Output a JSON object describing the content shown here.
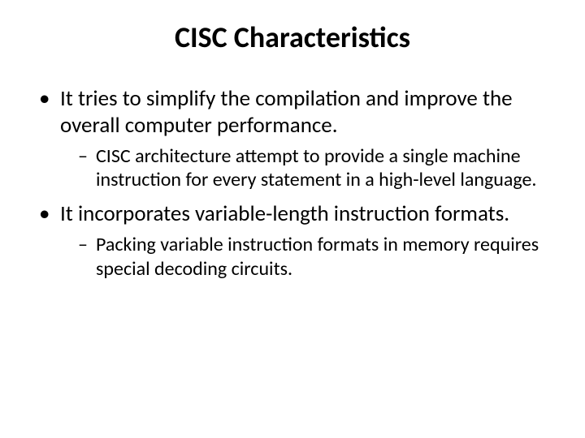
{
  "slide": {
    "title": "CISC Characteristics",
    "title_fontsize": 36,
    "bullets": [
      {
        "text": " It tries to simplify the compilation and improve the overall computer performance.",
        "fontsize": 27,
        "sub": [
          {
            "text": "CISC architecture attempt to provide a single machine instruction for every statement in a high-level language.",
            "fontsize": 24
          }
        ]
      },
      {
        "text": "It incorporates  variable-length instruction formats.",
        "fontsize": 27,
        "sub": [
          {
            "text": "Packing variable instruction formats in memory requires special decoding circuits.",
            "fontsize": 24
          }
        ]
      }
    ],
    "colors": {
      "background": "#ffffff",
      "text": "#000000"
    }
  }
}
